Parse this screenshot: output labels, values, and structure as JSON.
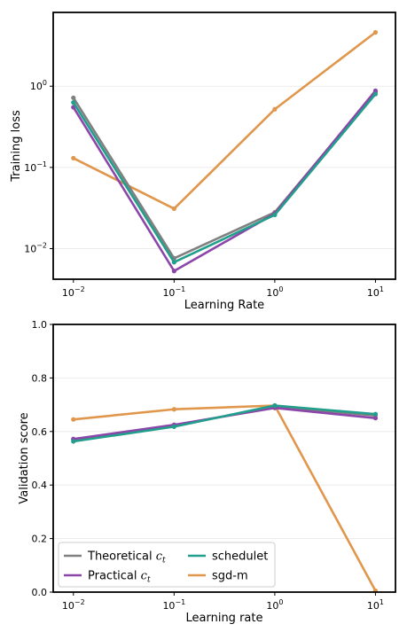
{
  "chart_data": [
    {
      "type": "line",
      "title": "",
      "xlabel": "Learning Rate",
      "ylabel": "Training loss",
      "xscale": "log",
      "yscale": "log",
      "x": [
        0.01,
        0.1,
        1,
        10
      ],
      "xticks": [
        {
          "base": "10",
          "exp": "−2"
        },
        {
          "base": "10",
          "exp": "−1"
        },
        {
          "base": "10",
          "exp": "0"
        },
        {
          "base": "10",
          "exp": "1"
        }
      ],
      "yticks": [
        {
          "value": 0.01,
          "base": "10",
          "exp": "−2"
        },
        {
          "value": 0.1,
          "base": "10",
          "exp": "−1"
        },
        {
          "value": 1,
          "base": "10",
          "exp": "0"
        }
      ],
      "xlim": [
        0.0063,
        15.8
      ],
      "ylim": [
        0.0042,
        8.1
      ],
      "grid": true,
      "legend": "none",
      "series": [
        {
          "name": "sgd-m",
          "color": "#e0974c",
          "values": [
            0.13,
            0.031,
            0.52,
            4.6
          ]
        },
        {
          "name": "Theoretical c_t",
          "color": "#808080",
          "values": [
            0.72,
            0.0076,
            0.028,
            0.85
          ]
        },
        {
          "name": "Practical c_t",
          "color": "#8c45a8",
          "values": [
            0.55,
            0.0053,
            0.027,
            0.88
          ]
        },
        {
          "name": "schedulet",
          "color": "#229e8c",
          "values": [
            0.63,
            0.0068,
            0.026,
            0.8
          ]
        }
      ]
    },
    {
      "type": "line",
      "title": "",
      "xlabel": "Learning rate",
      "ylabel": "Validation score",
      "xscale": "log",
      "yscale": "linear",
      "x": [
        0.01,
        0.1,
        1,
        10
      ],
      "xticks": [
        {
          "base": "10",
          "exp": "−2"
        },
        {
          "base": "10",
          "exp": "−1"
        },
        {
          "base": "10",
          "exp": "0"
        },
        {
          "base": "10",
          "exp": "1"
        }
      ],
      "yticks": [
        {
          "value": 0.0,
          "label": "0.0"
        },
        {
          "value": 0.2,
          "label": "0.2"
        },
        {
          "value": 0.4,
          "label": "0.4"
        },
        {
          "value": 0.6,
          "label": "0.6"
        },
        {
          "value": 0.8,
          "label": "0.8"
        },
        {
          "value": 1.0,
          "label": "1.0"
        }
      ],
      "xlim": [
        0.0063,
        15.8
      ],
      "ylim": [
        0,
        1.0
      ],
      "grid": true,
      "legend": "lower-left",
      "series": [
        {
          "name": "sgd-m",
          "color": "#e0974c",
          "values": [
            0.645,
            0.683,
            0.697,
            0.005
          ]
        },
        {
          "name": "Theoretical c_t",
          "color": "#808080",
          "values": [
            0.57,
            0.622,
            0.692,
            0.66
          ]
        },
        {
          "name": "Practical c_t",
          "color": "#8c45a8",
          "values": [
            0.572,
            0.625,
            0.688,
            0.65
          ]
        },
        {
          "name": "schedulet",
          "color": "#229e8c",
          "values": [
            0.563,
            0.618,
            0.697,
            0.665
          ]
        }
      ],
      "legend_entries": [
        {
          "label": "Theoretical",
          "math": "c",
          "sub": "t",
          "color": "#808080"
        },
        {
          "label": "schedulet",
          "math": "",
          "sub": "",
          "color": "#229e8c"
        },
        {
          "label": "Practical",
          "math": "c",
          "sub": "t",
          "color": "#8c45a8"
        },
        {
          "label": "sgd-m",
          "math": "",
          "sub": "",
          "color": "#e0974c"
        }
      ]
    }
  ]
}
